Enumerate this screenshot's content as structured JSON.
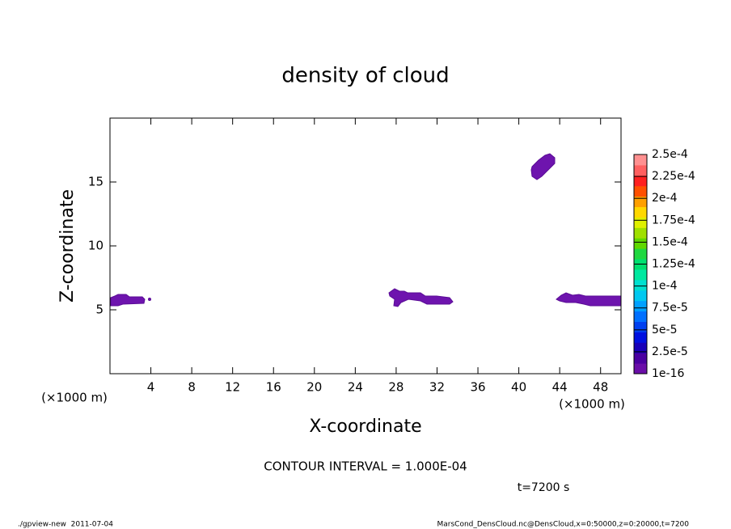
{
  "chart_data": {
    "type": "contour",
    "title": "density of cloud",
    "x_label": "X-coordinate",
    "y_label": "Z-coordinate",
    "x_unit": "(×1000 m)",
    "y_unit": "(×1000 m)",
    "xlim": [
      0,
      50
    ],
    "xticks": [
      4,
      8,
      12,
      16,
      20,
      24,
      28,
      32,
      36,
      40,
      44,
      48
    ],
    "ylim": [
      0,
      20
    ],
    "yticks": [
      5,
      10,
      15
    ],
    "colorbar": {
      "ticks": [
        {
          "value": 1e-16,
          "label": "1e-16"
        },
        {
          "value": 2.5e-05,
          "label": "2.5e-5"
        },
        {
          "value": 5e-05,
          "label": "5e-5"
        },
        {
          "value": 7.5e-05,
          "label": "7.5e-5"
        },
        {
          "value": 0.0001,
          "label": "1e-4"
        },
        {
          "value": 0.000125,
          "label": "1.25e-4"
        },
        {
          "value": 0.00015,
          "label": "1.5e-4"
        },
        {
          "value": 0.000175,
          "label": "1.75e-4"
        },
        {
          "value": 0.0002,
          "label": "2e-4"
        },
        {
          "value": 0.000225,
          "label": "2.25e-4"
        },
        {
          "value": 0.00025,
          "label": "2.5e-4"
        }
      ],
      "colors": [
        "#6a0ea8",
        "#4a00a0",
        "#1800b8",
        "#0010e0",
        "#0040f0",
        "#0070ff",
        "#00a0ff",
        "#00c8f0",
        "#00e0d0",
        "#00e8a0",
        "#00e070",
        "#20d840",
        "#60d800",
        "#a0e000",
        "#e0f000",
        "#ffd800",
        "#ffa000",
        "#ff5000",
        "#ff2020",
        "#ff6060",
        "#ff9090"
      ]
    },
    "contour_interval": "CONTOUR INTERVAL = 1.000E-04",
    "time_label": "t=7200 s",
    "footer_left": "./gpview-new  2011-07-04",
    "footer_right": "MarsCond_DensCloud.nc@DensCloud,x=0:50000,z=0:20000,t=7200"
  }
}
